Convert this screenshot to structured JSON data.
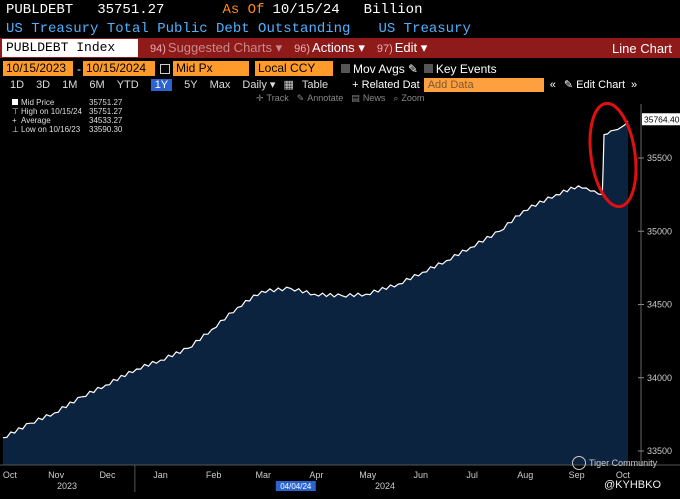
{
  "header": {
    "ticker": "PUBLDEBT",
    "last_value": "35751.27",
    "as_of_label": "As Of",
    "as_of_date": "10/15/24",
    "unit": "Billion",
    "description": "US Treasury Total Public Debt Outstanding",
    "source": "US Treasury"
  },
  "menubar": {
    "index_label": "PUBLDEBT Index",
    "suggested_num": "94)",
    "suggested_label": "Suggested Charts",
    "actions_num": "96)",
    "actions_label": "Actions",
    "edit_num": "97)",
    "edit_label": "Edit",
    "chart_type_label": "Line Chart"
  },
  "toolbar": {
    "start_date": "10/15/2023",
    "end_date": "10/15/2024",
    "field": "Mid Px",
    "currency": "Local CCY",
    "mov_avgs": "Mov Avgs",
    "key_events": "Key Events"
  },
  "periods": {
    "items": [
      "1D",
      "3D",
      "1M",
      "6M",
      "YTD",
      "1Y",
      "5Y",
      "Max"
    ],
    "selected": "1Y",
    "frequency": "Daily",
    "table": "Table",
    "related": "+ Related Dat",
    "add_data": "Add Data",
    "edit_chart": "Edit Chart"
  },
  "tools": {
    "track": "Track",
    "annotate": "Annotate",
    "news": "News",
    "zoom": "Zoom"
  },
  "legend": {
    "mid_price_label": "Mid Price",
    "mid_price_value": "35751.27",
    "high_label": "High on 10/15/24",
    "high_value": "35751.27",
    "average_label": "Average",
    "average_value": "34533.27",
    "low_label": "Low on 10/16/23",
    "low_value": "33590.30"
  },
  "last_price_tag": "35764.40",
  "watermarks": {
    "community": "Tiger Community",
    "handle": "@KYHBKO"
  },
  "colors": {
    "area_fill": "#0c2340",
    "line": "#ffffff",
    "highlight_circle": "#e01010",
    "menubar": "#8e1a1a",
    "accent_orange": "#ff8a1a",
    "accent_blue": "#4fb2ff"
  },
  "chart_data": {
    "type": "area",
    "y_ticks": [
      33500,
      34000,
      34500,
      35000,
      35500
    ],
    "ylim": [
      33470,
      35820
    ],
    "x_month_labels": [
      "Oct",
      "Nov",
      "Dec",
      "Jan",
      "Feb",
      "Mar",
      "Apr",
      "May",
      "Jun",
      "Jul",
      "Aug",
      "Sep",
      "Oct"
    ],
    "x_year_labels": [
      "2023",
      "2024"
    ],
    "x_cursor_label": "04/04/24",
    "x": [
      "2023-10-16",
      "2023-11-01",
      "2023-11-15",
      "2023-12-01",
      "2023-12-15",
      "2024-01-02",
      "2024-01-16",
      "2024-02-01",
      "2024-02-15",
      "2024-03-01",
      "2024-03-15",
      "2024-04-01",
      "2024-04-15",
      "2024-05-01",
      "2024-05-15",
      "2024-06-03",
      "2024-06-17",
      "2024-07-01",
      "2024-07-15",
      "2024-08-01",
      "2024-08-15",
      "2024-09-03",
      "2024-09-16",
      "2024-09-30",
      "2024-10-01",
      "2024-10-07",
      "2024-10-11",
      "2024-10-15"
    ],
    "values": [
      33590,
      33690,
      33760,
      33870,
      33950,
      34060,
      34120,
      34200,
      34330,
      34480,
      34590,
      34610,
      34570,
      34560,
      34570,
      34640,
      34720,
      34800,
      34890,
      35000,
      35140,
      35250,
      35310,
      35250,
      35660,
      35690,
      35710,
      35751
    ],
    "series": [
      {
        "name": "Mid Price",
        "values": [
          33590,
          33690,
          33760,
          33870,
          33950,
          34060,
          34120,
          34200,
          34330,
          34480,
          34590,
          34610,
          34570,
          34560,
          34570,
          34640,
          34720,
          34800,
          34890,
          35000,
          35140,
          35250,
          35310,
          35250,
          35660,
          35690,
          35710,
          35751
        ]
      }
    ],
    "highlight": {
      "shape": "ellipse",
      "around": [
        "2024-09-30",
        "2024-10-15"
      ]
    },
    "legend_placement": "top-left",
    "grid": false
  }
}
